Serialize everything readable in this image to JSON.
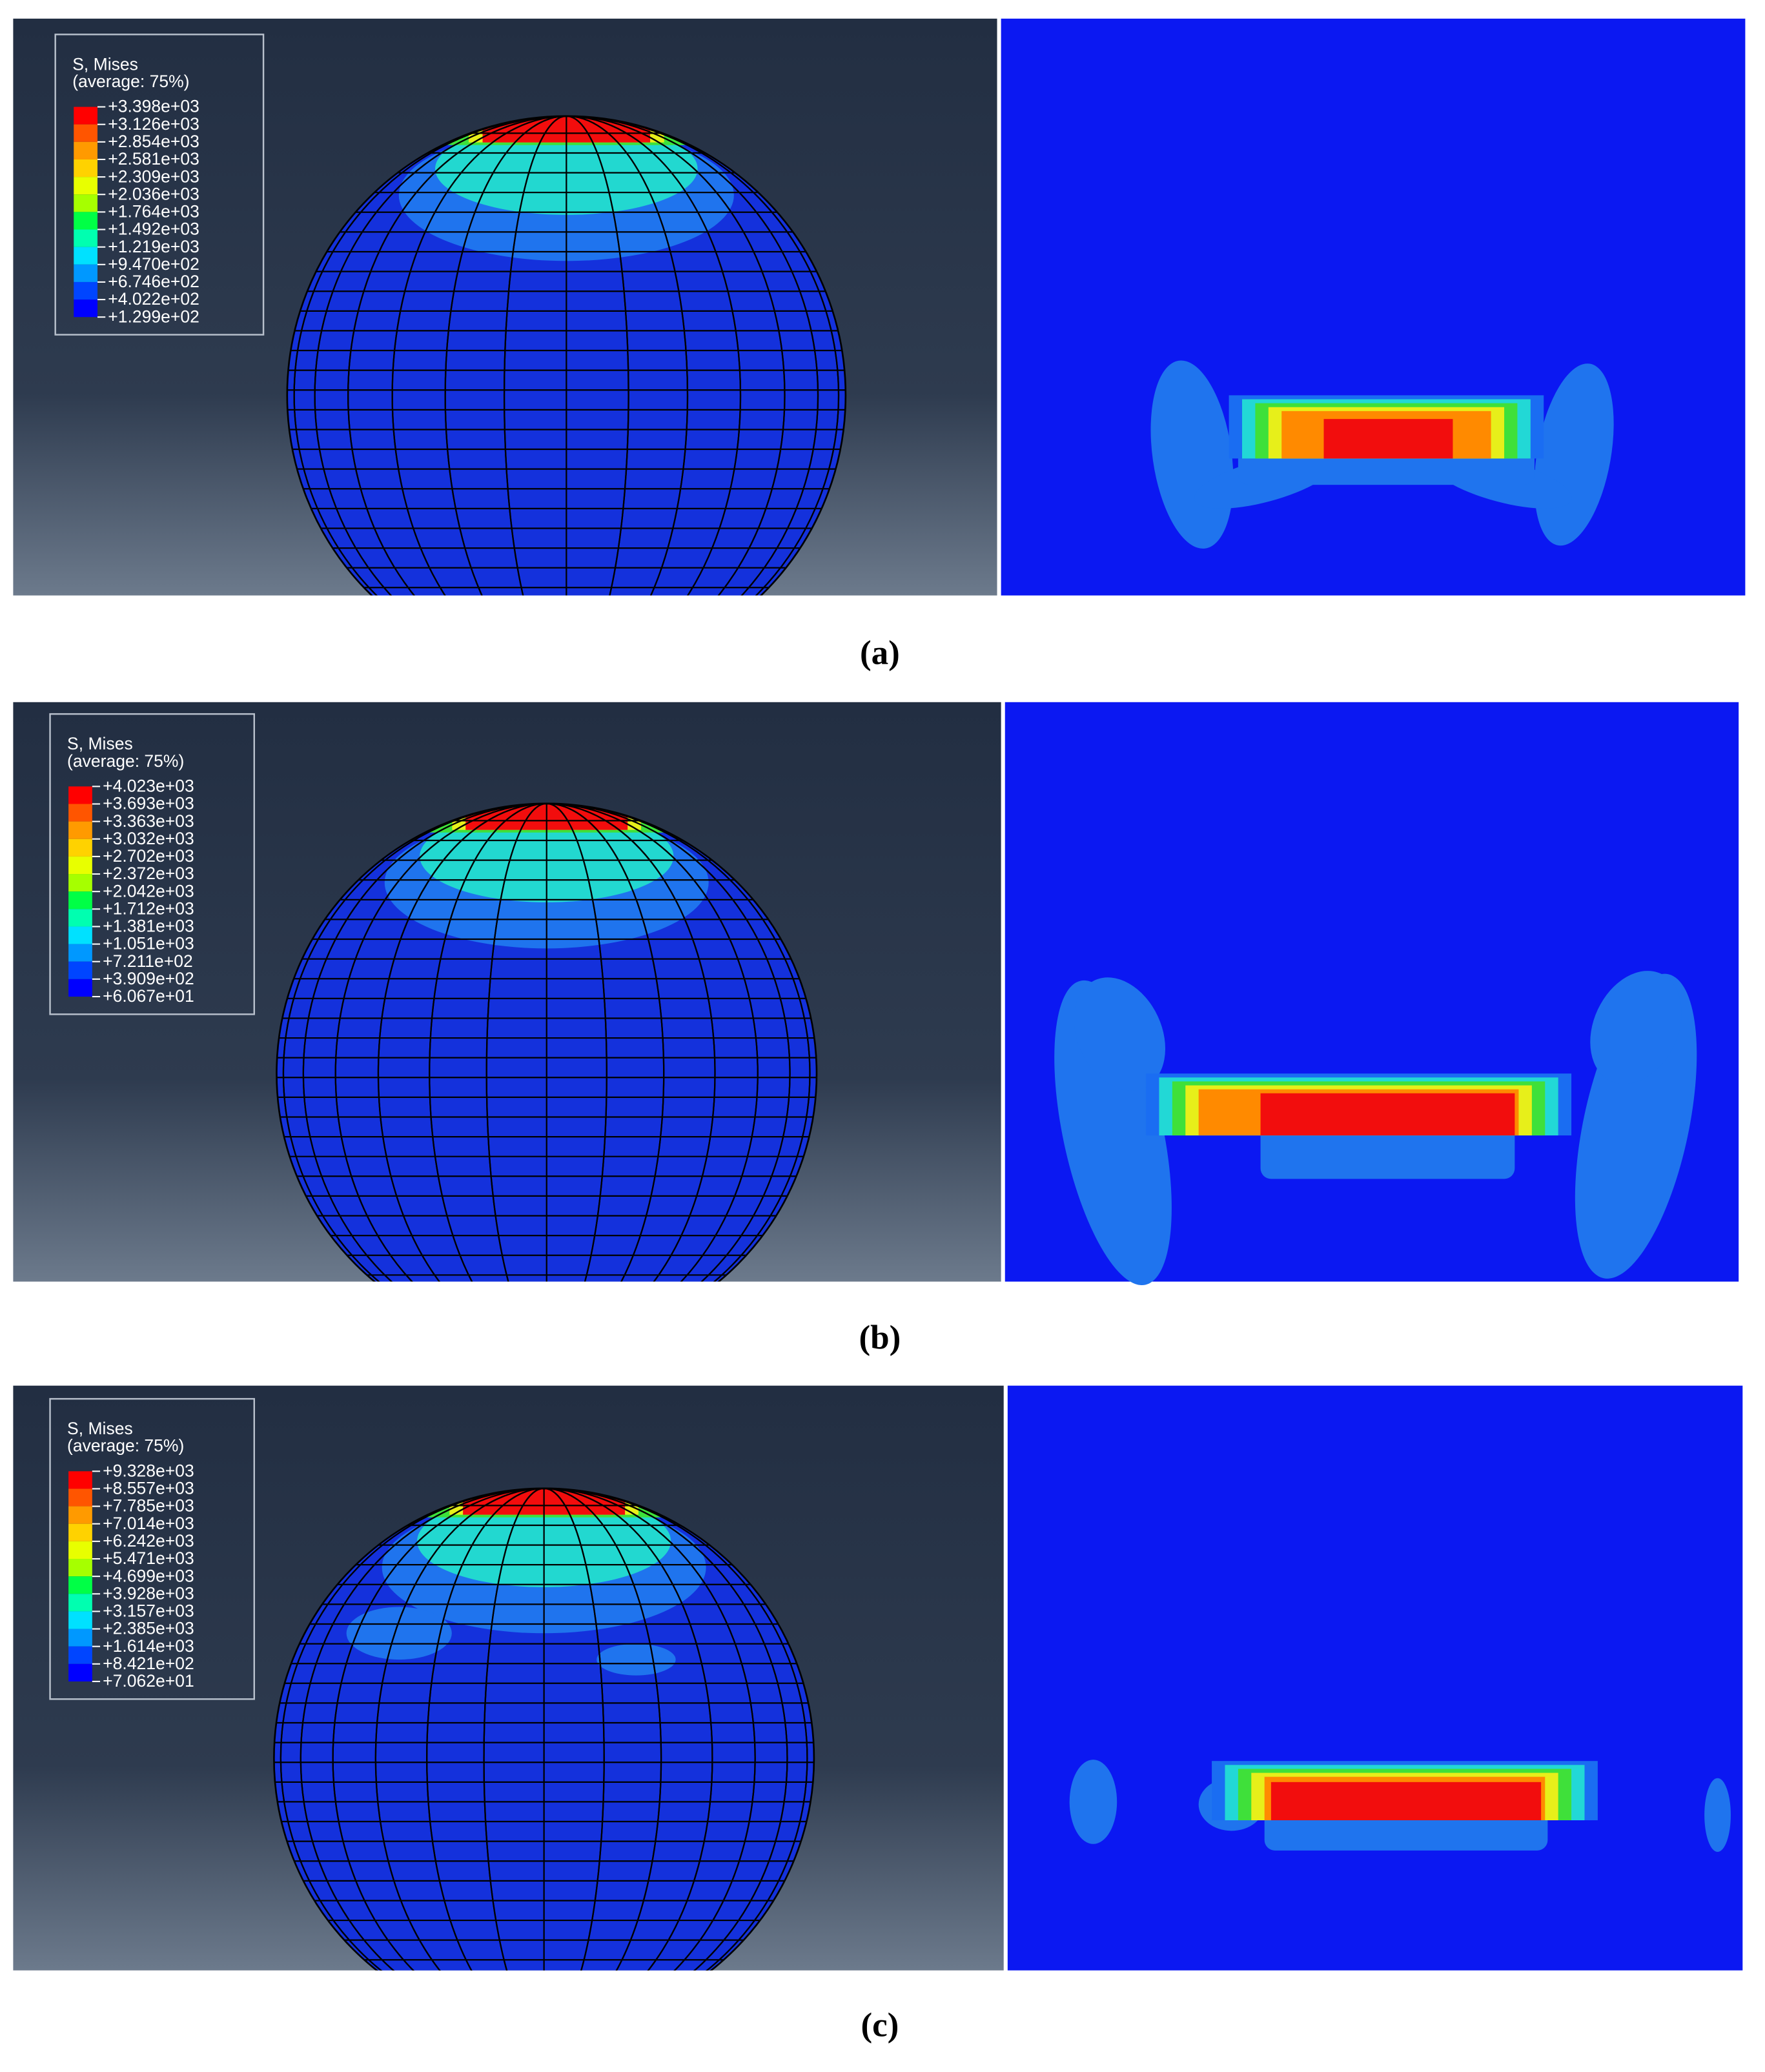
{
  "panels": [
    {
      "legend": {
        "title": "S, Mises",
        "subtitle": "(average: 75%)",
        "labels": [
          "+3.398e+03",
          "+3.126e+03",
          "+2.854e+03",
          "+2.581e+03",
          "+2.309e+03",
          "+2.036e+03",
          "+1.764e+03",
          "+1.492e+03",
          "+1.219e+03",
          "+9.470e+02",
          "+6.746e+02",
          "+4.022e+02",
          "+1.299e+02"
        ]
      },
      "caption": "(a)"
    },
    {
      "legend": {
        "title": "S, Mises",
        "subtitle": "(average: 75%)",
        "labels": [
          "+4.023e+03",
          "+3.693e+03",
          "+3.363e+03",
          "+3.032e+03",
          "+2.702e+03",
          "+2.372e+03",
          "+2.042e+03",
          "+1.712e+03",
          "+1.381e+03",
          "+1.051e+03",
          "+7.211e+02",
          "+3.909e+02",
          "+6.067e+01"
        ]
      },
      "caption": "(b)"
    },
    {
      "legend": {
        "title": "S, Mises",
        "subtitle": "(average: 75%)",
        "labels": [
          "+9.328e+03",
          "+8.557e+03",
          "+7.785e+03",
          "+7.014e+03",
          "+6.242e+03",
          "+5.471e+03",
          "+4.699e+03",
          "+3.928e+03",
          "+3.157e+03",
          "+2.385e+03",
          "+1.614e+03",
          "+8.421e+02",
          "+7.062e+01"
        ]
      },
      "caption": "(c)"
    }
  ]
}
